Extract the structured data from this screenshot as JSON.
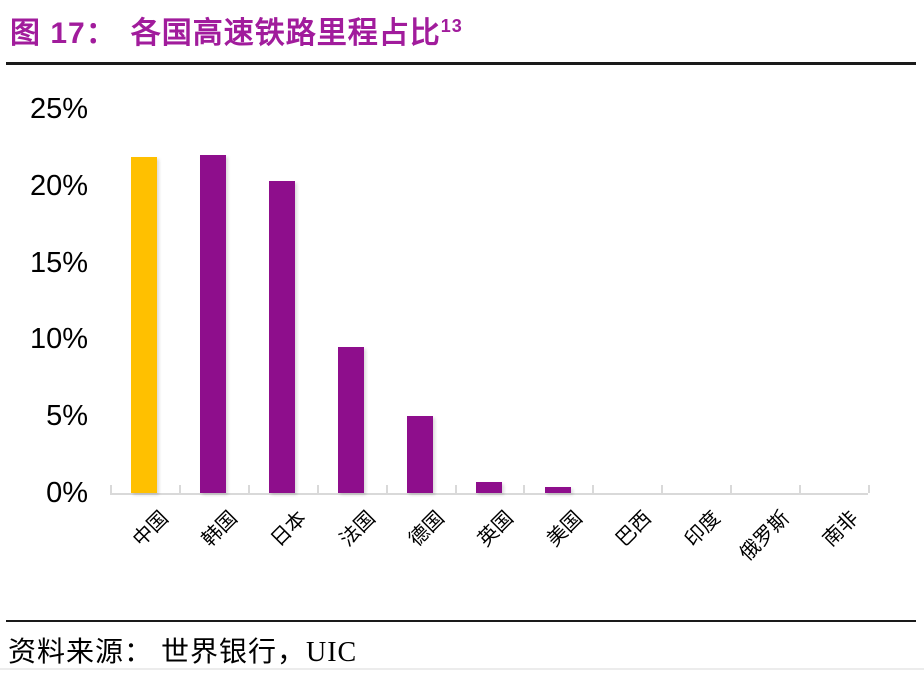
{
  "header": {
    "figure_label": "图 17：",
    "title": "各国高速铁路里程占比",
    "superscript": "13"
  },
  "source": {
    "text": "资料来源： 世界银行，UIC"
  },
  "colors": {
    "title_purple": "#A11C9C",
    "bar_purple": "#8E0E8C",
    "bar_yellow": "#FFC000",
    "axis_gray": "#D9D9D9",
    "label_black": "#000000"
  },
  "chart_data": {
    "type": "bar",
    "title": "各国高速铁路里程占比",
    "categories": [
      "中国",
      "韩国",
      "日本",
      "法国",
      "德国",
      "英国",
      "美国",
      "巴西",
      "印度",
      "俄罗斯",
      "南非"
    ],
    "values": [
      21.9,
      22.0,
      20.3,
      9.5,
      5.0,
      0.7,
      0.4,
      0,
      0,
      0,
      0
    ],
    "highlight_index": 0,
    "highlight_color": "#FFC000",
    "bar_color": "#8E0E8C",
    "ylim": [
      0,
      25
    ],
    "yticks": [
      0,
      5,
      10,
      15,
      20,
      25
    ],
    "ytick_labels": [
      "0%",
      "5%",
      "10%",
      "15%",
      "20%",
      "25%"
    ],
    "xlabel": "",
    "ylabel": "",
    "grid": false,
    "legend": "none",
    "x_label_rotation": 45
  }
}
